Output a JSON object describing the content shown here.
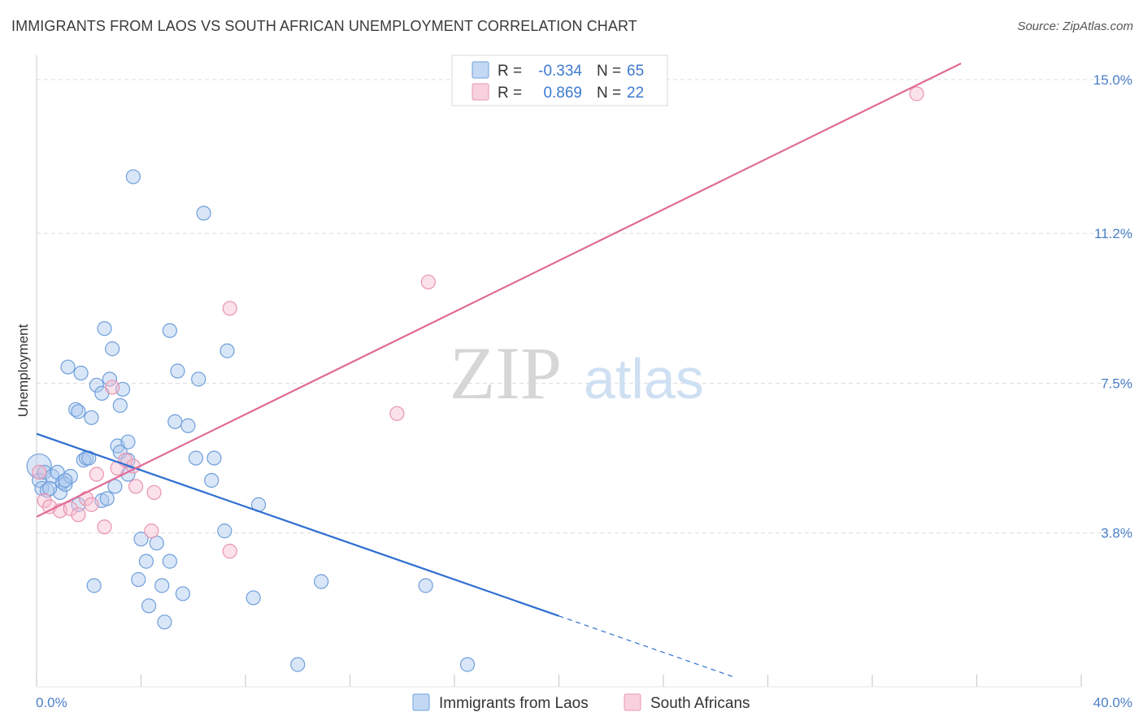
{
  "title": "IMMIGRANTS FROM LAOS VS SOUTH AFRICAN UNEMPLOYMENT CORRELATION CHART",
  "source": "Source: ZipAtlas.com",
  "watermark": {
    "zip": "ZIP",
    "atlas": "atlas"
  },
  "colors": {
    "blue_fill": "#aac8ee",
    "blue_stroke": "#6f9fdc",
    "blue_line": "#2f6fd0",
    "pink_fill": "#f7bdd0",
    "pink_stroke": "#e895b0",
    "pink_line": "#e06b96",
    "grid": "#dddddd",
    "tick_text": "#4a7fc8"
  },
  "legend": {
    "rows": [
      {
        "r_label": "R =",
        "r_value": "-0.334",
        "n_label": "N =",
        "n_value": "65"
      },
      {
        "r_label": "R =",
        "r_value": "0.869",
        "n_label": "N =",
        "n_value": "22"
      }
    ]
  },
  "bottom_legend": [
    "Immigrants from Laos",
    "South Africans"
  ],
  "chart_data": {
    "type": "scatter",
    "title": "IMMIGRANTS FROM LAOS VS SOUTH AFRICAN UNEMPLOYMENT CORRELATION CHART",
    "xlabel": "",
    "ylabel": "Unemployment",
    "xlim": [
      0,
      40
    ],
    "ylim": [
      0,
      15.4
    ],
    "x_tick_labels": [
      "0.0%",
      "40.0%"
    ],
    "y_ticks": [
      3.8,
      7.5,
      11.2,
      15.0
    ],
    "y_tick_labels": [
      "3.8%",
      "7.5%",
      "11.2%",
      "15.0%"
    ],
    "grid": true,
    "series": [
      {
        "name": "Immigrants from Laos",
        "r": -0.334,
        "n": 65,
        "trend": {
          "x0": 0,
          "y0": 6.25,
          "x1": 20,
          "y1": 1.75,
          "dashed_to_x": 26.7
        },
        "points": [
          [
            0.1,
            5.45
          ],
          [
            0.1,
            5.1
          ],
          [
            0.2,
            4.9
          ],
          [
            0.3,
            5.3
          ],
          [
            0.4,
            4.85
          ],
          [
            0.6,
            5.2
          ],
          [
            0.8,
            5.3
          ],
          [
            0.9,
            4.8
          ],
          [
            1.0,
            5.05
          ],
          [
            1.1,
            5.0
          ],
          [
            1.3,
            5.2
          ],
          [
            1.6,
            4.5
          ],
          [
            1.2,
            7.9
          ],
          [
            1.7,
            7.75
          ],
          [
            1.5,
            6.85
          ],
          [
            1.6,
            6.8
          ],
          [
            2.1,
            6.65
          ],
          [
            1.8,
            5.6
          ],
          [
            1.9,
            5.65
          ],
          [
            2.0,
            5.65
          ],
          [
            2.5,
            4.6
          ],
          [
            2.7,
            4.65
          ],
          [
            2.3,
            7.45
          ],
          [
            2.5,
            7.25
          ],
          [
            2.6,
            8.85
          ],
          [
            2.8,
            7.6
          ],
          [
            2.9,
            8.35
          ],
          [
            3.0,
            4.95
          ],
          [
            3.1,
            5.95
          ],
          [
            3.2,
            5.8
          ],
          [
            3.2,
            6.95
          ],
          [
            3.3,
            7.35
          ],
          [
            3.5,
            6.05
          ],
          [
            3.5,
            5.6
          ],
          [
            3.5,
            5.25
          ],
          [
            3.7,
            12.6
          ],
          [
            2.2,
            2.5
          ],
          [
            3.9,
            2.65
          ],
          [
            4.0,
            3.65
          ],
          [
            4.2,
            3.1
          ],
          [
            4.3,
            2.0
          ],
          [
            4.6,
            3.55
          ],
          [
            4.8,
            2.5
          ],
          [
            4.9,
            1.6
          ],
          [
            5.1,
            3.1
          ],
          [
            5.1,
            8.8
          ],
          [
            5.3,
            6.55
          ],
          [
            5.4,
            7.8
          ],
          [
            5.6,
            2.3
          ],
          [
            5.8,
            6.45
          ],
          [
            6.1,
            5.65
          ],
          [
            6.2,
            7.6
          ],
          [
            6.4,
            11.7
          ],
          [
            6.7,
            5.1
          ],
          [
            6.8,
            5.65
          ],
          [
            7.2,
            3.85
          ],
          [
            7.3,
            8.3
          ],
          [
            8.3,
            2.2
          ],
          [
            8.5,
            4.5
          ],
          [
            10.0,
            0.55
          ],
          [
            10.9,
            2.6
          ],
          [
            14.9,
            2.5
          ],
          [
            16.5,
            0.55
          ],
          [
            0.5,
            4.9
          ],
          [
            1.1,
            5.1
          ]
        ]
      },
      {
        "name": "South Africans",
        "r": 0.869,
        "n": 22,
        "trend": {
          "x0": 0,
          "y0": 4.2,
          "x1": 35.4,
          "y1": 15.4
        },
        "points": [
          [
            0.1,
            5.3
          ],
          [
            0.3,
            4.6
          ],
          [
            0.5,
            4.45
          ],
          [
            0.9,
            4.35
          ],
          [
            1.3,
            4.4
          ],
          [
            1.6,
            4.25
          ],
          [
            1.9,
            4.65
          ],
          [
            2.1,
            4.5
          ],
          [
            2.3,
            5.25
          ],
          [
            2.6,
            3.95
          ],
          [
            2.9,
            7.4
          ],
          [
            3.1,
            5.4
          ],
          [
            3.4,
            5.6
          ],
          [
            3.7,
            5.45
          ],
          [
            3.8,
            4.95
          ],
          [
            4.4,
            3.85
          ],
          [
            4.5,
            4.8
          ],
          [
            7.4,
            3.35
          ],
          [
            7.4,
            9.35
          ],
          [
            13.8,
            6.75
          ],
          [
            15.0,
            10.0
          ],
          [
            33.7,
            14.65
          ]
        ]
      }
    ]
  }
}
